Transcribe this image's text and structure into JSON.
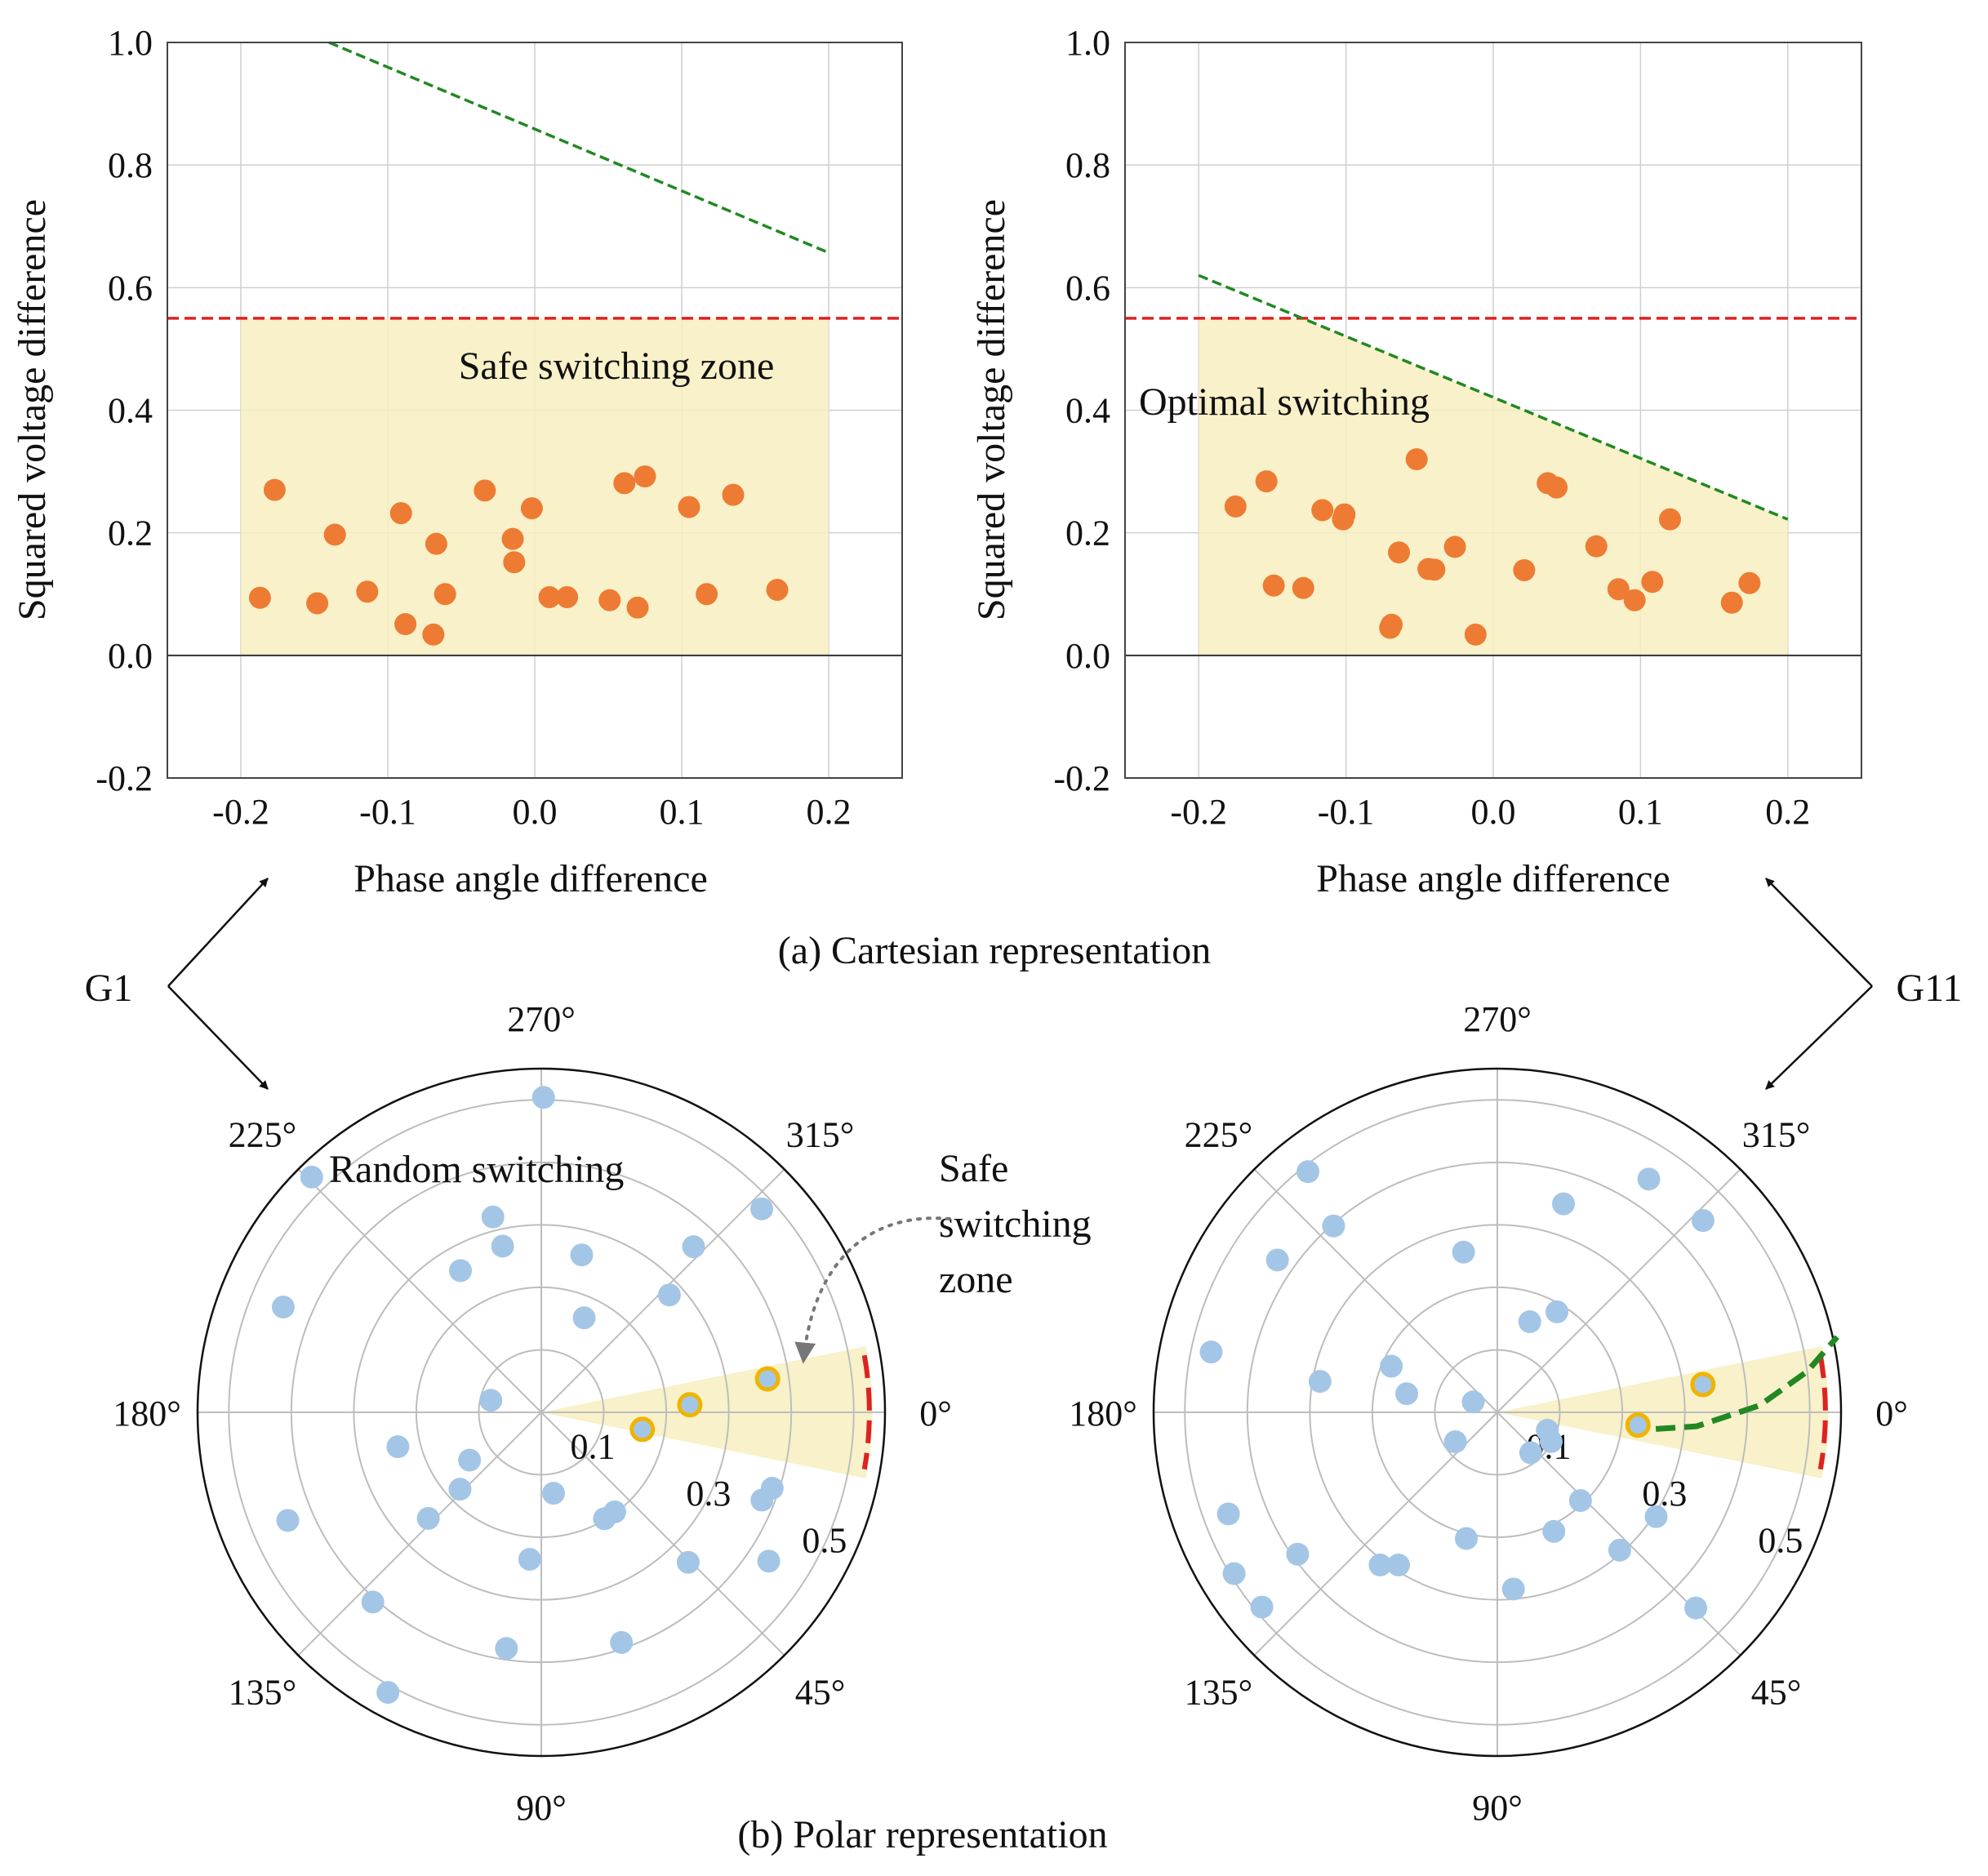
{
  "chart_data": [
    {
      "id": "cart-g1",
      "type": "scatter",
      "panel": "(a) Cartesian representation",
      "group": "G1",
      "xlabel": "Phase angle difference",
      "ylabel": "Squared voltage difference",
      "xlim": [
        -0.25,
        0.25
      ],
      "ylim": [
        -0.2,
        1.0
      ],
      "xticks": [
        -0.2,
        -0.1,
        0.0,
        0.1,
        0.2
      ],
      "xtick_labels": [
        "-0.2",
        "-0.1",
        "0.0",
        "0.1",
        "0.2"
      ],
      "yticks": [
        -0.2,
        0.0,
        0.2,
        0.4,
        0.6,
        0.8,
        1.0
      ],
      "ytick_labels": [
        "-0.2",
        "0.0",
        "0.2",
        "0.4",
        "0.6",
        "0.8",
        "1.0"
      ],
      "grid": true,
      "annotation": "Safe switching zone",
      "zone": {
        "type": "rect",
        "x": [
          -0.2,
          0.2
        ],
        "y": [
          0.0,
          0.55
        ],
        "color": "#f7efbf"
      },
      "threshold_line": {
        "y": 0.55,
        "color": "#dd2222",
        "style": "dashed"
      },
      "boundary_line": {
        "points": [
          [
            -0.14,
            1.0
          ],
          [
            0.2,
            0.657
          ]
        ],
        "color": "#228822",
        "style": "dashed"
      },
      "marker_color": "#ee7b33",
      "points": [
        [
          -0.187,
          0.094
        ],
        [
          -0.177,
          0.27
        ],
        [
          -0.148,
          0.085
        ],
        [
          -0.136,
          0.197
        ],
        [
          -0.114,
          0.104
        ],
        [
          -0.091,
          0.232
        ],
        [
          -0.088,
          0.051
        ],
        [
          -0.069,
          0.034
        ],
        [
          -0.067,
          0.182
        ],
        [
          -0.061,
          0.1
        ],
        [
          -0.034,
          0.269
        ],
        [
          -0.015,
          0.19
        ],
        [
          -0.014,
          0.152
        ],
        [
          -0.002,
          0.24
        ],
        [
          0.01,
          0.095
        ],
        [
          0.022,
          0.095
        ],
        [
          0.051,
          0.09
        ],
        [
          0.061,
          0.281
        ],
        [
          0.07,
          0.078
        ],
        [
          0.075,
          0.292
        ],
        [
          0.105,
          0.242
        ],
        [
          0.117,
          0.1
        ],
        [
          0.135,
          0.262
        ],
        [
          0.165,
          0.107
        ]
      ]
    },
    {
      "id": "cart-g11",
      "type": "scatter",
      "panel": "(a) Cartesian representation",
      "group": "G11",
      "xlabel": "Phase angle difference",
      "ylabel": "Squared voltage difference",
      "xlim": [
        -0.25,
        0.25
      ],
      "ylim": [
        -0.2,
        1.0
      ],
      "xticks": [
        -0.2,
        -0.1,
        0.0,
        0.1,
        0.2
      ],
      "xtick_labels": [
        "-0.2",
        "-0.1",
        "0.0",
        "0.1",
        "0.2"
      ],
      "yticks": [
        -0.2,
        0.0,
        0.2,
        0.4,
        0.6,
        0.8,
        1.0
      ],
      "ytick_labels": [
        "-0.2",
        "0.0",
        "0.2",
        "0.4",
        "0.6",
        "0.8",
        "1.0"
      ],
      "grid": true,
      "annotation": "Optimal switching",
      "zone": {
        "type": "trap",
        "x": [
          -0.2,
          0.2
        ],
        "y": [
          0.0,
          0.55
        ],
        "line": [
          [
            -0.2,
            0.62
          ],
          [
            0.2,
            0.222
          ]
        ],
        "color": "#f7efbf"
      },
      "threshold_line": {
        "y": 0.55,
        "color": "#dd2222",
        "style": "dashed"
      },
      "boundary_line": {
        "points": [
          [
            -0.2,
            0.62
          ],
          [
            0.2,
            0.222
          ]
        ],
        "color": "#228822",
        "style": "dashed"
      },
      "marker_color": "#ee7b33",
      "points": [
        [
          -0.175,
          0.243
        ],
        [
          -0.154,
          0.284
        ],
        [
          -0.149,
          0.114
        ],
        [
          -0.129,
          0.11
        ],
        [
          -0.116,
          0.237
        ],
        [
          -0.102,
          0.222
        ],
        [
          -0.101,
          0.23
        ],
        [
          -0.07,
          0.045
        ],
        [
          -0.069,
          0.05
        ],
        [
          -0.064,
          0.168
        ],
        [
          -0.052,
          0.32
        ],
        [
          -0.044,
          0.141
        ],
        [
          -0.04,
          0.14
        ],
        [
          -0.026,
          0.177
        ],
        [
          -0.012,
          0.034
        ],
        [
          0.021,
          0.139
        ],
        [
          0.037,
          0.281
        ],
        [
          0.043,
          0.274
        ],
        [
          0.07,
          0.178
        ],
        [
          0.085,
          0.108
        ],
        [
          0.096,
          0.09
        ],
        [
          0.108,
          0.12
        ],
        [
          0.12,
          0.222
        ],
        [
          0.162,
          0.086
        ],
        [
          0.174,
          0.118
        ]
      ]
    },
    {
      "id": "polar-g1",
      "type": "scatter",
      "projection": "polar",
      "panel": "(b) Polar representation",
      "group": "G1",
      "annotation": "Random switching",
      "rmax": 0.55,
      "rings": [
        0.1,
        0.2,
        0.3,
        0.4,
        0.5
      ],
      "ring_labels": [
        {
          "r": 0.1,
          "text": "0.1"
        },
        {
          "r": 0.3,
          "text": "0.3"
        },
        {
          "r": 0.5,
          "text": "0.5"
        }
      ],
      "angle_labels": [
        {
          "deg": 0,
          "text": "0°"
        },
        {
          "deg": 45,
          "text": "45°"
        },
        {
          "deg": 90,
          "text": "90°"
        },
        {
          "deg": 135,
          "text": "135°"
        },
        {
          "deg": 180,
          "text": "180°"
        },
        {
          "deg": 225,
          "text": "225°"
        },
        {
          "deg": 270,
          "text": "270°"
        },
        {
          "deg": 315,
          "text": "315°"
        }
      ],
      "sector": {
        "deg_from": -11.5,
        "deg_to": 11.5,
        "r": 0.53,
        "color": "#f7efbf"
      },
      "limit_arc": {
        "r": 0.525,
        "deg_from": -10,
        "deg_to": 10,
        "color": "#dd2222",
        "style": "dashed"
      },
      "marker_color": "#a4c6e6",
      "highlight_color": "#f0b400",
      "points": [
        {
          "deg": 312.6,
          "r": 0.36
        },
        {
          "deg": 317.3,
          "r": 0.48
        },
        {
          "deg": 317.5,
          "r": 0.278
        },
        {
          "deg": 294.4,
          "r": 0.166
        },
        {
          "deg": 284.4,
          "r": 0.26
        },
        {
          "deg": 270.4,
          "r": 0.504
        },
        {
          "deg": 256.1,
          "r": 0.322
        },
        {
          "deg": 256.9,
          "r": 0.273
        },
        {
          "deg": 240.3,
          "r": 0.261
        },
        {
          "deg": 225.7,
          "r": 0.526
        },
        {
          "deg": 202.2,
          "r": 0.446
        },
        {
          "deg": 193.4,
          "r": 0.083
        },
        {
          "deg": 166.5,
          "r": 0.236
        },
        {
          "deg": 156.9,
          "r": 0.441
        },
        {
          "deg": 146.3,
          "r": 0.138
        },
        {
          "deg": 136.6,
          "r": 0.179
        },
        {
          "deg": 136.8,
          "r": 0.248
        },
        {
          "deg": 131.6,
          "r": 0.406
        },
        {
          "deg": 118.7,
          "r": 0.511
        },
        {
          "deg": 98.4,
          "r": 0.382
        },
        {
          "deg": 94.5,
          "r": 0.236
        },
        {
          "deg": 81.4,
          "r": 0.131
        },
        {
          "deg": 70.8,
          "r": 0.39
        },
        {
          "deg": 59.3,
          "r": 0.198
        },
        {
          "deg": 53.6,
          "r": 0.198
        },
        {
          "deg": 45.6,
          "r": 0.336
        },
        {
          "deg": 33.2,
          "r": 0.435
        },
        {
          "deg": 21.7,
          "r": 0.38
        },
        {
          "deg": 18.2,
          "r": 0.389
        }
      ],
      "highlights": [
        {
          "deg": -8.4,
          "r": 0.366
        },
        {
          "deg": -2.9,
          "r": 0.238
        },
        {
          "deg": 9.6,
          "r": 0.164
        }
      ]
    },
    {
      "id": "polar-g11",
      "type": "scatter",
      "projection": "polar",
      "panel": "(b) Polar representation",
      "group": "G11",
      "rmax": 0.55,
      "rings": [
        0.1,
        0.2,
        0.3,
        0.4,
        0.5
      ],
      "ring_labels": [
        {
          "r": 0.1,
          "text": "0.1"
        },
        {
          "r": 0.3,
          "text": "0.3"
        },
        {
          "r": 0.5,
          "text": "0.5"
        }
      ],
      "angle_labels": [
        {
          "deg": 0,
          "text": "0°"
        },
        {
          "deg": 45,
          "text": "45°"
        },
        {
          "deg": 90,
          "text": "90°"
        },
        {
          "deg": 135,
          "text": "135°"
        },
        {
          "deg": 180,
          "text": "180°"
        },
        {
          "deg": 225,
          "text": "225°"
        },
        {
          "deg": 270,
          "text": "270°"
        },
        {
          "deg": 315,
          "text": "315°"
        }
      ],
      "sector": {
        "deg_from": -11.5,
        "deg_to": 11.5,
        "r": 0.53,
        "color": "#f7efbf"
      },
      "limit_arc": {
        "r": 0.525,
        "deg_from": -10,
        "deg_to": 10,
        "color": "#dd2222",
        "style": "dashed"
      },
      "boundary_curve": {
        "points": [
          [
            0.255,
            6.0
          ],
          [
            0.32,
            4.0
          ],
          [
            0.42,
            -1.5
          ],
          [
            0.5,
            -7.5
          ],
          [
            0.557,
            -12.5
          ]
        ],
        "color": "#228822",
        "style": "dashed"
      },
      "marker_color": "#a4c6e6",
      "highlight_color": "#f0b400",
      "points": [
        {
          "deg": 303.0,
          "r": 0.445
        },
        {
          "deg": 317.0,
          "r": 0.45
        },
        {
          "deg": 287.6,
          "r": 0.35
        },
        {
          "deg": 258.1,
          "r": 0.262
        },
        {
          "deg": 300.7,
          "r": 0.187
        },
        {
          "deg": 289.7,
          "r": 0.154
        },
        {
          "deg": 231.8,
          "r": 0.49
        },
        {
          "deg": 228.7,
          "r": 0.397
        },
        {
          "deg": 214.7,
          "r": 0.428
        },
        {
          "deg": 191.9,
          "r": 0.468
        },
        {
          "deg": 189.9,
          "r": 0.288
        },
        {
          "deg": 203.5,
          "r": 0.185
        },
        {
          "deg": 191.6,
          "r": 0.148
        },
        {
          "deg": 203.3,
          "r": 0.042
        },
        {
          "deg": 159.3,
          "r": 0.46
        },
        {
          "deg": 148.5,
          "r": 0.494
        },
        {
          "deg": 144.6,
          "r": 0.392
        },
        {
          "deg": 140.4,
          "r": 0.489
        },
        {
          "deg": 145.0,
          "r": 0.082
        },
        {
          "deg": 127.5,
          "r": 0.308
        },
        {
          "deg": 122.9,
          "r": 0.291
        },
        {
          "deg": 103.8,
          "r": 0.208
        },
        {
          "deg": 84.8,
          "r": 0.284
        },
        {
          "deg": 64.6,
          "r": 0.211
        },
        {
          "deg": 48.4,
          "r": 0.295
        },
        {
          "deg": 46.7,
          "r": 0.194
        },
        {
          "deg": 33.3,
          "r": 0.304
        },
        {
          "deg": 44.6,
          "r": 0.446
        },
        {
          "deg": 50.5,
          "r": 0.084
        },
        {
          "deg": 28.5,
          "r": 0.098
        },
        {
          "deg": 19.7,
          "r": 0.085
        }
      ],
      "highlights": [
        {
          "deg": -7.7,
          "r": 0.332
        },
        {
          "deg": 5.2,
          "r": 0.226
        }
      ]
    }
  ],
  "labels": {
    "panel_a": "(a) Cartesian  representation",
    "panel_b": "(b) Polar  representation",
    "g1": "G1",
    "g11": "G11",
    "safe_zone_line1": "Safe",
    "safe_zone_line2": "switching",
    "safe_zone_line3": "zone"
  }
}
